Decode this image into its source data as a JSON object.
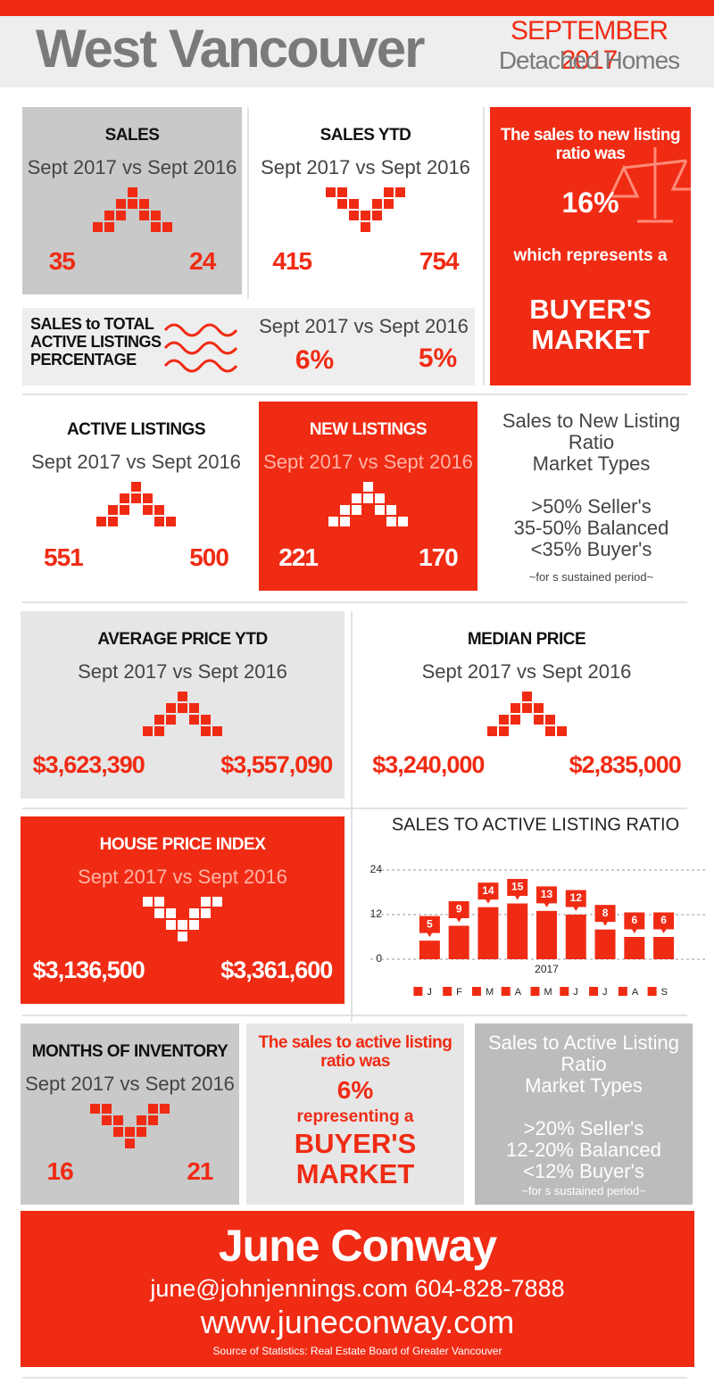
{
  "header": {
    "title": "West Vancouver",
    "date": "SEPTEMBER 2017",
    "subtitle": "Detached Homes"
  },
  "panels": {
    "sales": {
      "title": "SALES",
      "compare": "Sept 2017 vs Sept 2016",
      "current": "35",
      "previous": "24"
    },
    "sales_ytd": {
      "title": "SALES YTD",
      "compare": "Sept 2017 vs Sept 2016",
      "current": "415",
      "previous": "754"
    },
    "ratio_box": {
      "line1": "The sales to new listing ratio was",
      "value": "16%",
      "line2": "which represents a",
      "market": "BUYER'S\nMARKET"
    },
    "sales_to_active": {
      "title": "SALES to TOTAL\nACTIVE LISTINGS\nPERCENTAGE",
      "compare": "Sept 2017 vs Sept 2016",
      "current": "6%",
      "previous": "5%"
    },
    "active_listings": {
      "title": "ACTIVE LISTINGS",
      "compare": "Sept 2017 vs Sept 2016",
      "current": "551",
      "previous": "500"
    },
    "new_listings": {
      "title": "NEW LISTINGS",
      "compare": "Sept 2017 vs Sept 2016",
      "current": "221",
      "previous": "170"
    },
    "new_ratio_types": {
      "title": "Sales to New Listing\nRatio\nMarket Types",
      "lines": [
        ">50% Seller's",
        "35-50% Balanced",
        "<35% Buyer's"
      ],
      "note": "~for s sustained period~"
    },
    "average_price_ytd": {
      "title": "AVERAGE PRICE YTD",
      "compare": "Sept 2017 vs Sept 2016",
      "current": "$3,623,390",
      "previous": "$3,557,090"
    },
    "median_price": {
      "title": "MEDIAN PRICE",
      "compare": "Sept 2017 vs Sept 2016",
      "current": "$3,240,000",
      "previous": "$2,835,000"
    },
    "house_price_index": {
      "title": "HOUSE PRICE INDEX",
      "compare": "Sept 2017 vs Sept 2016",
      "current": "$3,136,500",
      "previous": "$3,361,600"
    },
    "months_of_inventory": {
      "title": "MONTHS OF INVENTORY",
      "compare": "Sept 2017 vs Sept 2016",
      "current": "16",
      "previous": "21"
    },
    "active_ratio_box": {
      "line1": "The sales to active listing ratio was",
      "value": "6%",
      "line2": "representing a",
      "market": "BUYER'S\nMARKET"
    },
    "active_ratio_types": {
      "title": "Sales to Active Listing\nRatio\nMarket Types",
      "lines": [
        ">20% Seller's",
        "12-20% Balanced",
        "<12% Buyer's"
      ],
      "note": "~for s sustained period~"
    }
  },
  "chart_data": {
    "type": "bar",
    "title": "SALES TO ACTIVE LISTING RATIO",
    "x_label": "2017",
    "categories": [
      "J",
      "F",
      "M",
      "A",
      "M",
      "J",
      "J",
      "A",
      "S"
    ],
    "values": [
      5,
      9,
      14,
      15,
      13,
      12,
      8,
      6,
      6
    ],
    "color": "#f02b14",
    "ylim": [
      0,
      24
    ],
    "yticks": [
      0,
      12,
      24
    ],
    "grid": true
  },
  "footer": {
    "name": "June Conway",
    "contact": "june@johnjennings.com 604-828-7888",
    "website": "www.juneconway.com",
    "source": "Source of Statistics: Real Estate Board of Greater Vancouver"
  }
}
